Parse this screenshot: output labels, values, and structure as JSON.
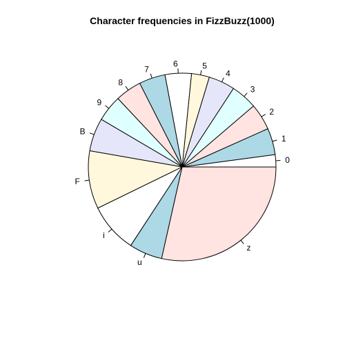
{
  "chart_data": {
    "type": "pie",
    "title": "Character frequencies in FizzBuzz(1000)",
    "start_angle_deg": 0,
    "direction": "counterclockwise",
    "slices": [
      {
        "label": "0",
        "value": 99,
        "color": "#ffffff"
      },
      {
        "label": "1",
        "value": 214,
        "color": "#add8e6"
      },
      {
        "label": "2",
        "value": 214,
        "color": "#ffe4e1"
      },
      {
        "label": "3",
        "value": 212,
        "color": "#e0ffff"
      },
      {
        "label": "4",
        "value": 212,
        "color": "#e6e6fa"
      },
      {
        "label": "5",
        "value": 144,
        "color": "#fff8dc"
      },
      {
        "label": "6",
        "value": 212,
        "color": "#ffffff"
      },
      {
        "label": "7",
        "value": 212,
        "color": "#add8e6"
      },
      {
        "label": "8",
        "value": 212,
        "color": "#ffe4e1"
      },
      {
        "label": "9",
        "value": 212,
        "color": "#e0ffff"
      },
      {
        "label": "B",
        "value": 267,
        "color": "#e6e6fa"
      },
      {
        "label": "F",
        "value": 467,
        "color": "#fff8dc"
      },
      {
        "label": "i",
        "value": 400,
        "color": "#ffffff"
      },
      {
        "label": "u",
        "value": 267,
        "color": "#add8e6"
      },
      {
        "label": "z",
        "value": 1334,
        "color": "#ffe4e1"
      }
    ]
  }
}
